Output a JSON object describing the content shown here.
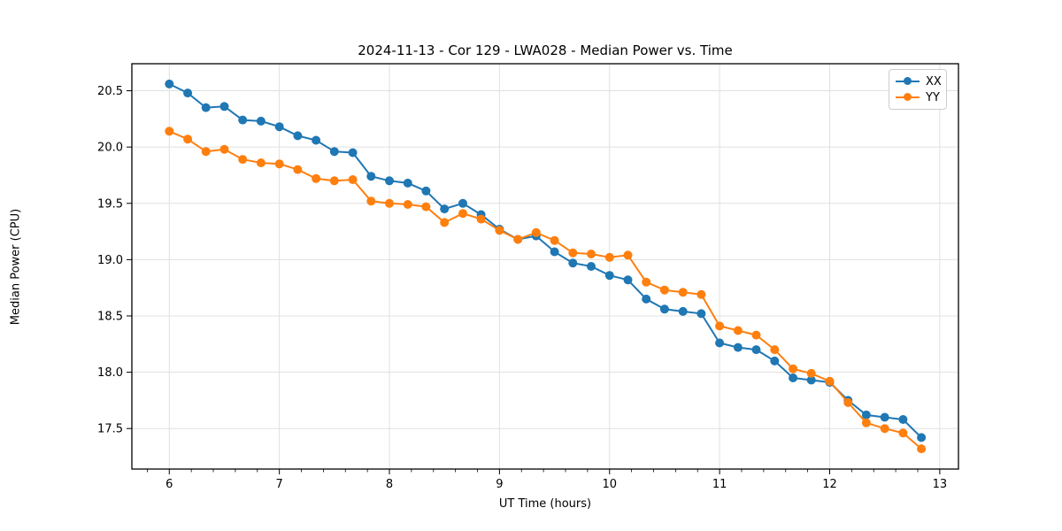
{
  "figure": {
    "background": "#ffffff",
    "spine_color": "#000000",
    "grid_color": "#e0e0e0",
    "tick_font_px": 13
  },
  "chart_data": {
    "type": "line",
    "title": "2024-11-13 - Cor 129 - LWA028 - Median Power vs. Time",
    "xlabel": "UT Time (hours)",
    "ylabel": "Median Power (CPU)",
    "xlim": [
      5.66,
      13.17
    ],
    "ylim": [
      17.14,
      20.74
    ],
    "x_ticks": [
      6,
      7,
      8,
      9,
      10,
      11,
      12,
      13
    ],
    "x_minor_tick_step": 0.2,
    "y_ticks": [
      17.5,
      18.0,
      18.5,
      19.0,
      19.5,
      20.0,
      20.5
    ],
    "grid": true,
    "legend_position": "upper right",
    "marker": "circle",
    "x": [
      6.0,
      6.167,
      6.333,
      6.5,
      6.667,
      6.833,
      7.0,
      7.167,
      7.333,
      7.5,
      7.667,
      7.833,
      8.0,
      8.167,
      8.333,
      8.5,
      8.667,
      8.833,
      9.0,
      9.167,
      9.333,
      9.5,
      9.667,
      9.833,
      10.0,
      10.167,
      10.333,
      10.5,
      10.667,
      10.833,
      11.0,
      11.167,
      11.333,
      11.5,
      11.667,
      11.833,
      12.0,
      12.167,
      12.333,
      12.5,
      12.667,
      12.833
    ],
    "series": [
      {
        "name": "XX",
        "color": "#1f77b4",
        "values": [
          20.56,
          20.48,
          20.35,
          20.36,
          20.24,
          20.23,
          20.18,
          20.1,
          20.06,
          19.96,
          19.95,
          19.74,
          19.7,
          19.68,
          19.61,
          19.45,
          19.5,
          19.4,
          19.27,
          19.18,
          19.21,
          19.07,
          18.97,
          18.94,
          18.86,
          18.82,
          18.65,
          18.56,
          18.54,
          18.52,
          18.26,
          18.22,
          18.2,
          18.1,
          17.95,
          17.93,
          17.91,
          17.75,
          17.62,
          17.6,
          17.58,
          17.42
        ]
      },
      {
        "name": "YY",
        "color": "#ff7f0e",
        "values": [
          20.14,
          20.07,
          19.96,
          19.98,
          19.89,
          19.86,
          19.85,
          19.8,
          19.72,
          19.7,
          19.71,
          19.52,
          19.5,
          19.49,
          19.47,
          19.33,
          19.41,
          19.36,
          19.26,
          19.18,
          19.24,
          19.17,
          19.06,
          19.05,
          19.02,
          19.04,
          18.8,
          18.73,
          18.71,
          18.69,
          18.41,
          18.37,
          18.33,
          18.2,
          18.03,
          17.99,
          17.92,
          17.73,
          17.55,
          17.5,
          17.46,
          17.32
        ]
      }
    ]
  }
}
